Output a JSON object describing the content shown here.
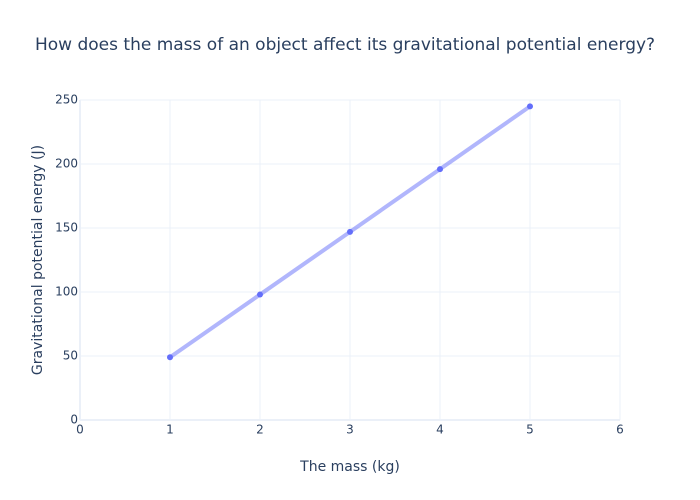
{
  "chart_data": {
    "type": "line",
    "title": "How does the mass of an object affect its gravitational potential energy?",
    "x_label": "The mass (kg)",
    "y_label": "Gravitational potential energy (J)",
    "x": [
      1,
      2,
      3,
      4,
      5
    ],
    "values": [
      49,
      98,
      147,
      196,
      245
    ],
    "color": "#636efa",
    "xlim": [
      0,
      6
    ],
    "xticks": [
      0,
      1,
      2,
      3,
      4,
      5,
      6
    ],
    "ylim": [
      0,
      250
    ],
    "yticks": [
      0,
      50,
      100,
      150,
      200,
      250
    ],
    "grid": true
  }
}
